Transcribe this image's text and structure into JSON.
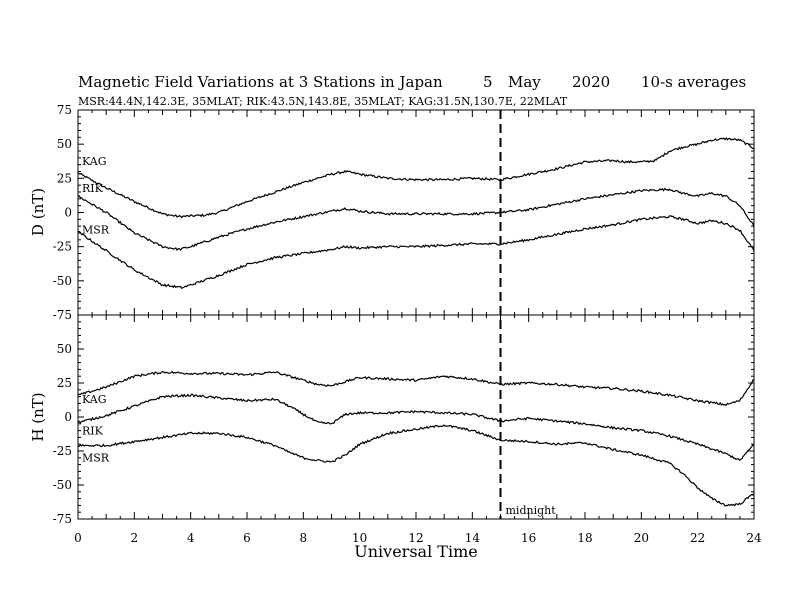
{
  "header": {
    "title": "Magnetic Field Variations at 3 Stations in Japan",
    "date_day": "5",
    "date_month": "May",
    "date_year": "2020",
    "averaging": "10-s averages",
    "subtitle": "MSR:44.4N,142.3E, 35MLAT;  RIK:43.5N,143.8E, 35MLAT;  KAG:31.5N,130.7E, 22MLAT"
  },
  "chart_data": {
    "type": "line",
    "xlabel": "Universal Time",
    "xlim": [
      0,
      24
    ],
    "xticks": [
      0,
      2,
      4,
      6,
      8,
      10,
      12,
      14,
      16,
      18,
      20,
      22,
      24
    ],
    "marker": {
      "x": 15,
      "label": "midnight",
      "style": "dashed"
    },
    "panels": [
      {
        "id": "D",
        "ylabel": "D (nT)",
        "ylim": [
          -75,
          75
        ],
        "yticks": [
          75,
          50,
          25,
          0,
          -25,
          -50,
          -75
        ],
        "series": [
          {
            "name": "KAG",
            "x": [
              0,
              1,
              2,
              3,
              3.6,
              4.5,
              5,
              6,
              7,
              8,
              9,
              9.5,
              10,
              11,
              12,
              13,
              14,
              15,
              16,
              17,
              18,
              19,
              19.5,
              20,
              20.5,
              21,
              21.5,
              22,
              22.5,
              23,
              23.5,
              24
            ],
            "y": [
              29,
              18,
              8,
              -1,
              -3,
              -2,
              0,
              8,
              15,
              22,
              28,
              30,
              28,
              25,
              24,
              24,
              25,
              24,
              28,
              32,
              37,
              38,
              37,
              37,
              38,
              45,
              48,
              50,
              53,
              54,
              53,
              47
            ]
          },
          {
            "name": "RIK",
            "x": [
              0,
              1,
              2,
              3,
              3.6,
              4,
              5,
              6,
              7,
              8,
              9,
              9.5,
              10,
              11,
              12,
              13,
              14,
              15,
              16,
              17,
              18,
              19,
              20,
              21,
              21.5,
              22,
              22.5,
              23,
              23.5,
              24
            ],
            "y": [
              12,
              0,
              -15,
              -25,
              -27,
              -25,
              -18,
              -12,
              -7,
              -3,
              1,
              3,
              1,
              -1,
              -1,
              -1,
              -1,
              0,
              2,
              6,
              10,
              13,
              16,
              17,
              14,
              12,
              14,
              12,
              5,
              -10
            ]
          },
          {
            "name": "MSR",
            "x": [
              0,
              1,
              2,
              3,
              3.7,
              4,
              5,
              6,
              7,
              8,
              9,
              9.5,
              10,
              11,
              12,
              13,
              14,
              15,
              16,
              17,
              18,
              19,
              20,
              21,
              21.5,
              22,
              22.5,
              23,
              23.5,
              24
            ],
            "y": [
              -14,
              -28,
              -42,
              -53,
              -55,
              -53,
              -46,
              -38,
              -33,
              -30,
              -27,
              -25,
              -26,
              -25,
              -25,
              -24,
              -23,
              -23,
              -20,
              -16,
              -12,
              -9,
              -5,
              -3,
              -5,
              -8,
              -6,
              -8,
              -13,
              -28
            ]
          }
        ]
      },
      {
        "id": "H",
        "ylabel": "H (nT)",
        "ylim": [
          -75,
          75
        ],
        "yticks": [
          75,
          50,
          25,
          0,
          -25,
          -50,
          -75
        ],
        "series": [
          {
            "name": "KAG",
            "x": [
              0,
              1,
              2,
              3,
              4,
              5,
              6,
              7,
              7.5,
              8,
              8.5,
              9,
              9.5,
              10,
              11,
              12,
              13,
              14,
              15,
              16,
              17,
              18,
              19,
              20,
              21,
              22,
              23,
              23.5,
              24
            ],
            "y": [
              16,
              22,
              30,
              33,
              32,
              32,
              31,
              33,
              30,
              27,
              24,
              23,
              26,
              29,
              28,
              27,
              30,
              28,
              24,
              25,
              24,
              22,
              21,
              19,
              16,
              12,
              9,
              12,
              28
            ]
          },
          {
            "name": "RIK",
            "x": [
              0,
              1,
              2,
              3,
              4,
              5,
              6,
              7,
              7.5,
              8,
              8.5,
              9,
              9.5,
              10,
              11,
              12,
              13,
              14,
              15,
              16,
              17,
              18,
              19,
              20,
              21,
              22,
              23,
              23.5,
              24
            ],
            "y": [
              -4,
              1,
              8,
              15,
              16,
              14,
              12,
              13,
              8,
              2,
              -4,
              -5,
              2,
              3,
              3,
              4,
              3,
              2,
              -3,
              -1,
              -3,
              -5,
              -8,
              -10,
              -14,
              -20,
              -27,
              -32,
              -20
            ]
          },
          {
            "name": "MSR",
            "x": [
              0,
              1,
              2,
              3,
              4,
              5,
              6,
              7,
              7.5,
              8,
              8.5,
              9,
              9.5,
              10,
              11,
              12,
              13,
              14,
              15,
              16,
              17,
              18,
              19,
              20,
              21,
              21.5,
              22,
              22.5,
              23,
              23.5,
              24
            ],
            "y": [
              -21,
              -21,
              -18,
              -15,
              -12,
              -12,
              -15,
              -21,
              -26,
              -30,
              -32,
              -33,
              -28,
              -20,
              -12,
              -9,
              -6,
              -10,
              -17,
              -18,
              -20,
              -19,
              -24,
              -28,
              -34,
              -42,
              -52,
              -60,
              -65,
              -64,
              -56
            ]
          }
        ]
      }
    ]
  }
}
